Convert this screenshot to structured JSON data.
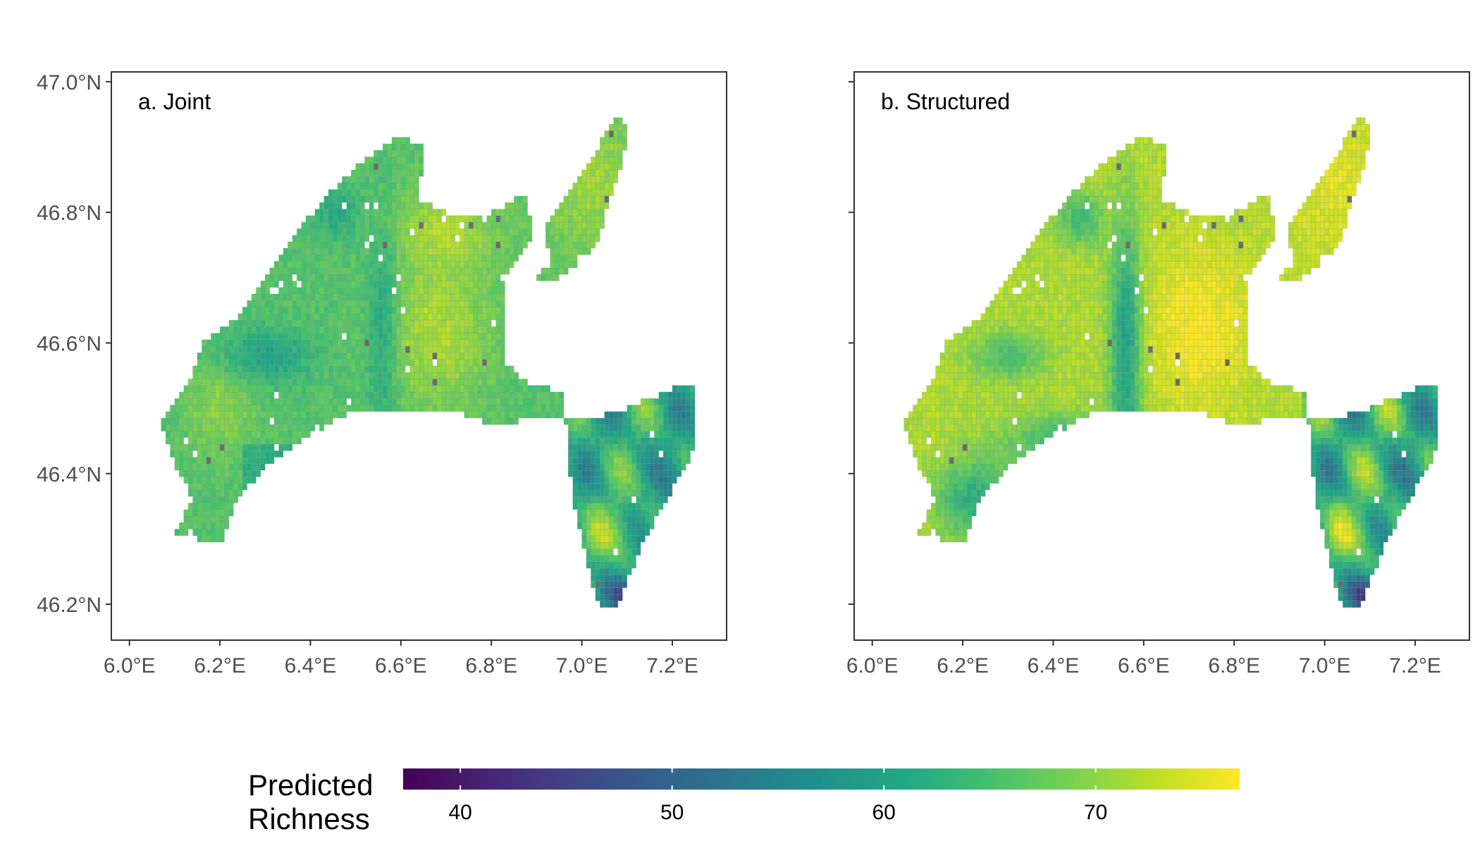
{
  "panels": [
    {
      "label": "a. Joint",
      "variant": "joint"
    },
    {
      "label": "b. Structured",
      "variant": "structured"
    }
  ],
  "map": {
    "lon_range": [
      5.96,
      7.32
    ],
    "lat_range": [
      46.145,
      47.015
    ],
    "lon_ticks": [
      6.0,
      6.2,
      6.4,
      6.6,
      6.8,
      7.0,
      7.2
    ],
    "lon_tick_labels": [
      "6.0°E",
      "6.2°E",
      "6.4°E",
      "6.6°E",
      "6.8°E",
      "7.0°E",
      "7.2°E"
    ],
    "lat_ticks": [
      46.2,
      46.4,
      46.6,
      46.8,
      47.0
    ],
    "lat_tick_labels": [
      "46.2°N",
      "46.4°N",
      "46.6°N",
      "46.8°N",
      "47.0°N"
    ],
    "missing_color": "#6b6b6b",
    "cell_border_color": "#8a8a8a"
  },
  "legend": {
    "title_lines": [
      "Predicted",
      "Richness"
    ],
    "range": [
      37.3,
      76.8
    ],
    "ticks": [
      40,
      50,
      60,
      70
    ],
    "tick_labels": [
      "40",
      "50",
      "60",
      "70"
    ],
    "palette": "viridis"
  }
}
